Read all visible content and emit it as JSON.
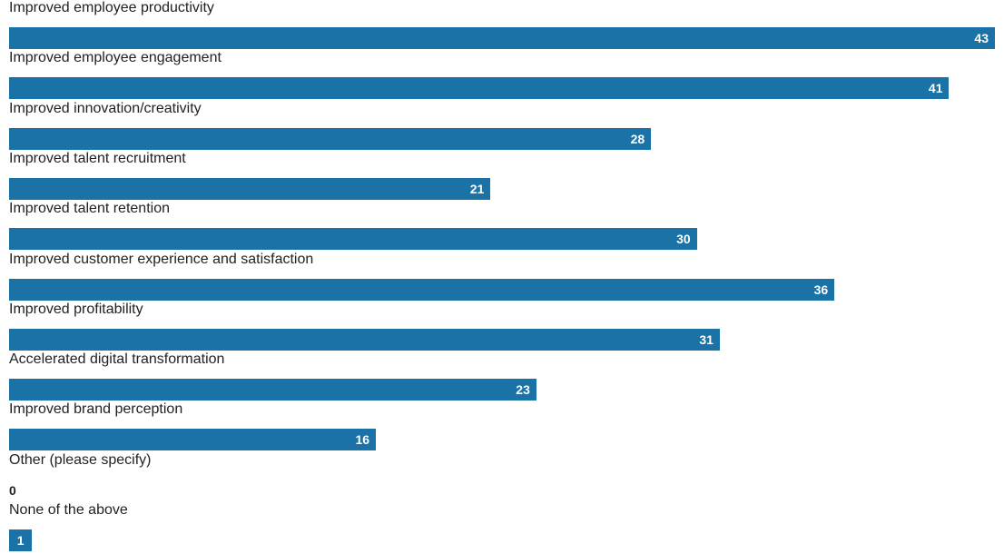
{
  "chart_data": {
    "type": "bar",
    "orientation": "horizontal",
    "bar_color": "#1a72a6",
    "categories": [
      "Improved employee productivity",
      "Improved employee engagement",
      "Improved innovation/creativity",
      "Improved talent recruitment",
      "Improved talent retention",
      "Improved customer experience and satisfaction",
      "Improved profitability",
      "Accelerated digital transformation",
      "Improved brand perception",
      "Other (please specify)",
      "None of the above"
    ],
    "values": [
      43,
      41,
      28,
      21,
      30,
      36,
      31,
      23,
      16,
      0,
      1
    ],
    "xlim": [
      0,
      43
    ]
  }
}
